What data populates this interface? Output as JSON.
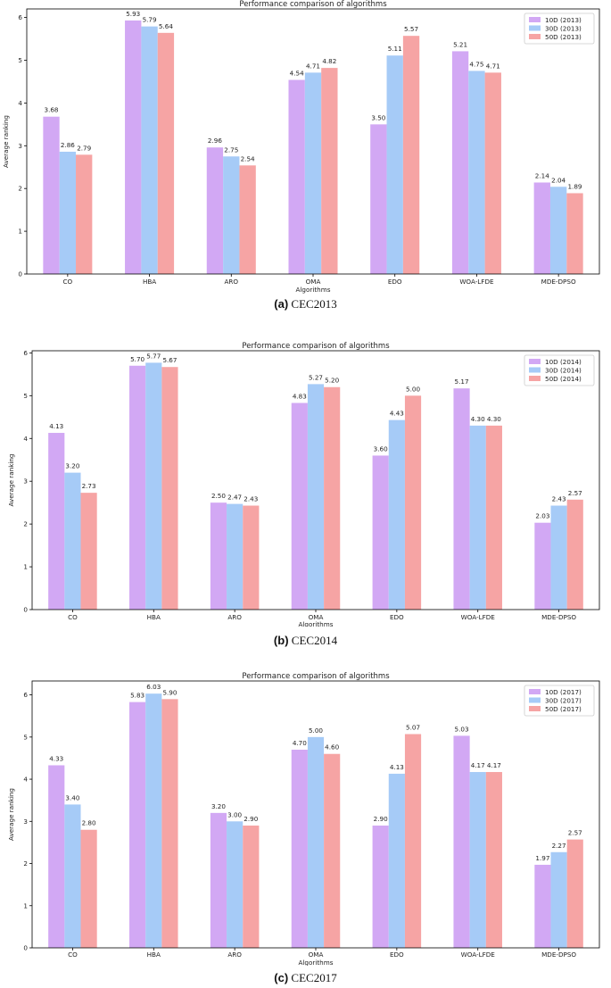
{
  "colors": {
    "s0": "#d2a8f4",
    "s1": "#a6cbf7",
    "s2": "#f6a4a4",
    "axis": "#000000"
  },
  "captions": [
    {
      "letter": "(a)",
      "text": "CEC2013"
    },
    {
      "letter": "(b)",
      "text": "CEC2014"
    },
    {
      "letter": "(c)",
      "text": "CEC2017"
    }
  ],
  "chart_data": [
    {
      "type": "bar",
      "title": "Performance comparison of algorithms",
      "xlabel": "Algorithms",
      "ylabel": "Average ranking",
      "ylim": [
        0,
        6.2
      ],
      "yticks": [
        0,
        1,
        2,
        3,
        4,
        5,
        6
      ],
      "legend_position": "top-right",
      "categories": [
        "CO",
        "HBA",
        "ARO",
        "OMA",
        "EDO",
        "WOA-LFDE",
        "MDE-DPSO"
      ],
      "series": [
        {
          "name": "10D (2013)",
          "values": [
            3.68,
            5.93,
            2.96,
            4.54,
            3.5,
            5.21,
            2.14
          ]
        },
        {
          "name": "30D (2013)",
          "values": [
            2.86,
            5.79,
            2.75,
            4.71,
            5.11,
            4.75,
            2.04
          ]
        },
        {
          "name": "50D (2013)",
          "values": [
            2.79,
            5.64,
            2.54,
            4.82,
            5.57,
            4.71,
            1.89
          ]
        }
      ]
    },
    {
      "type": "bar",
      "title": "Performance comparison of algorithms",
      "xlabel": "Algorithms",
      "ylabel": "Average ranking",
      "ylim": [
        0,
        6.05
      ],
      "yticks": [
        0,
        1,
        2,
        3,
        4,
        5,
        6
      ],
      "legend_position": "top-right",
      "categories": [
        "CO",
        "HBA",
        "ARO",
        "OMA",
        "EDO",
        "WOA-LFDE",
        "MDE-DPSO"
      ],
      "series": [
        {
          "name": "10D (2014)",
          "values": [
            4.13,
            5.7,
            2.5,
            4.83,
            3.6,
            5.17,
            2.03
          ]
        },
        {
          "name": "30D (2014)",
          "values": [
            3.2,
            5.77,
            2.47,
            5.27,
            4.43,
            4.3,
            2.43
          ]
        },
        {
          "name": "50D (2014)",
          "values": [
            2.73,
            5.67,
            2.43,
            5.2,
            5.0,
            4.3,
            2.57
          ]
        }
      ]
    },
    {
      "type": "bar",
      "title": "Performance comparison of algorithms",
      "xlabel": "Algorithms",
      "ylabel": "Average ranking",
      "ylim": [
        0,
        6.33
      ],
      "yticks": [
        0,
        1,
        2,
        3,
        4,
        5,
        6
      ],
      "legend_position": "top-right",
      "categories": [
        "CO",
        "HBA",
        "ARO",
        "OMA",
        "EDO",
        "WOA-LFDE",
        "MDE-DPSO"
      ],
      "series": [
        {
          "name": "10D (2017)",
          "values": [
            4.33,
            5.83,
            3.2,
            4.7,
            2.9,
            5.03,
            1.97
          ]
        },
        {
          "name": "30D (2017)",
          "values": [
            3.4,
            6.03,
            3.0,
            5.0,
            4.13,
            4.17,
            2.27
          ]
        },
        {
          "name": "50D (2017)",
          "values": [
            2.8,
            5.9,
            2.9,
            4.6,
            5.07,
            4.17,
            2.57
          ]
        }
      ]
    }
  ]
}
